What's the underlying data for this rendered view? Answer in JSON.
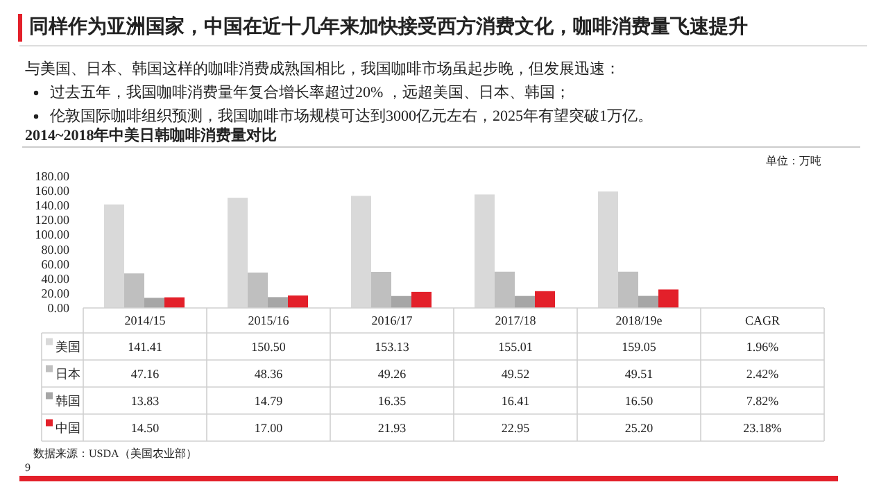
{
  "chart_data": {
    "type": "bar",
    "title": "同样作为亚洲国家，中国在近十几年来加快接受西方消费文化，咖啡消费量飞速提升",
    "subtitle": "2014~2018年中美日韩咖啡消费量对比",
    "annotations": [
      "与美国、日本、韩国这样的咖啡消费成熟国相比，我国咖啡市场虽起步晚，但发展迅速：",
      "过去五年，我国咖啡消费量年复合增长率超过20% ，远超美国、日本、韩国；",
      "伦敦国际咖啡组织预测，我国咖啡市场规模可达到3000亿元左右，2025年有望突破1万亿。",
      "单位：万吨",
      "数据来源：USDA（美国农业部）",
      "9"
    ],
    "categories": [
      "2014/15",
      "2015/16",
      "2016/17",
      "2017/18",
      "2018/19e",
      "CAGR"
    ],
    "series": [
      {
        "name": "美国",
        "color": "#d9d9d9",
        "values": [
          141.41,
          150.5,
          153.13,
          155.01,
          159.05,
          null
        ],
        "value_labels": [
          "141.41",
          "150.50",
          "153.13",
          "155.01",
          "159.05",
          "1.96%"
        ]
      },
      {
        "name": "日本",
        "color": "#bfbfbf",
        "values": [
          47.16,
          48.36,
          49.26,
          49.52,
          49.51,
          null
        ],
        "value_labels": [
          "47.16",
          "48.36",
          "49.26",
          "49.52",
          "49.51",
          "2.42%"
        ]
      },
      {
        "name": "韩国",
        "color": "#a6a6a6",
        "values": [
          13.83,
          14.79,
          16.35,
          16.41,
          16.5,
          null
        ],
        "value_labels": [
          "13.83",
          "14.79",
          "16.35",
          "16.41",
          "16.50",
          "7.82%"
        ]
      },
      {
        "name": "中国",
        "color": "#e3202a",
        "values": [
          14.5,
          17.0,
          21.93,
          22.95,
          25.2,
          null
        ],
        "value_labels": [
          "14.50",
          "17.00",
          "21.93",
          "22.95",
          "25.20",
          "23.18%"
        ]
      }
    ],
    "ylim": [
      0,
      180
    ],
    "yticks": [
      {
        "value": 0,
        "label": "0.00"
      },
      {
        "value": 20,
        "label": "20.00"
      },
      {
        "value": 40,
        "label": "40.00"
      },
      {
        "value": 60,
        "label": "60.00"
      },
      {
        "value": 80,
        "label": "80.00"
      },
      {
        "value": 100,
        "label": "100.00"
      },
      {
        "value": 120,
        "label": "120.00"
      },
      {
        "value": 140,
        "label": "140.00"
      },
      {
        "value": 160,
        "label": "160.00"
      },
      {
        "value": 180,
        "label": "180.00"
      }
    ],
    "legend": "bottom"
  }
}
